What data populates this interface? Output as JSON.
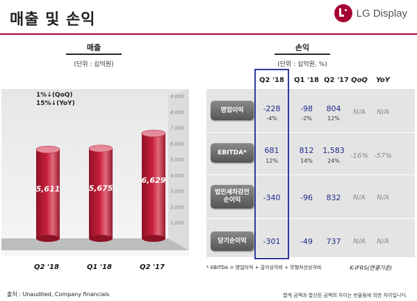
{
  "header": {
    "title": "매출 및 손익",
    "logo_text": "LG Display"
  },
  "sales": {
    "title": "매출",
    "unit": "(단위 : 십억원)",
    "growth_qoq": "1%↓(QoQ)",
    "growth_yoy": "15%↓(YoY)"
  },
  "chart_data": {
    "type": "bar",
    "categories": [
      "Q2 '18",
      "Q1 '18",
      "Q2 '17"
    ],
    "values": [
      5611,
      5675,
      6629
    ],
    "value_labels": [
      "5,611",
      "5,675",
      "6,629"
    ],
    "ylim": [
      0,
      9000
    ],
    "yticks": [
      "1,000",
      "2,000",
      "3,000",
      "4,000",
      "5,000",
      "6,000",
      "7,000",
      "8,000",
      "9,000"
    ],
    "bar_color": "#c8203c"
  },
  "pl": {
    "title": "손익",
    "unit": "(단위 : 십억원, %)",
    "columns": [
      "Q2 '18",
      "Q1 '18",
      "Q2 '17",
      "QoQ",
      "YoY"
    ],
    "rows": [
      {
        "label": "영업이익",
        "values": [
          "-228",
          "-98",
          "804",
          "N/A",
          "N/A"
        ],
        "sub": [
          "-4%",
          "-2%",
          "12%"
        ]
      },
      {
        "label": "EBITDA*",
        "values": [
          "681",
          "812",
          "1,583",
          "-16%",
          "-57%"
        ],
        "sub": [
          "12%",
          "14%",
          "24%"
        ]
      },
      {
        "label_line1": "법인세차감전",
        "label_line2": "순이익",
        "values": [
          "-340",
          "-96",
          "832",
          "N/A",
          "N/A"
        ]
      },
      {
        "label": "당기순이익",
        "values": [
          "-301",
          "-49",
          "737",
          "N/A",
          "N/A"
        ]
      }
    ],
    "footnote": "* EBITDA = 영업이익 + 감가상각비 + 무형자산상각비",
    "standard": "K-IFRS(연결기준)"
  },
  "footer": {
    "source": "출처 : Unaudited, Company financials",
    "disclaimer": "합계 금액과 합산된 금액의 차이는 반올림에 의한 차이입니다."
  },
  "colors": {
    "brand": "#a50034",
    "highlight_box": "#2b3a9a",
    "value_text": "#1e2a8a"
  }
}
